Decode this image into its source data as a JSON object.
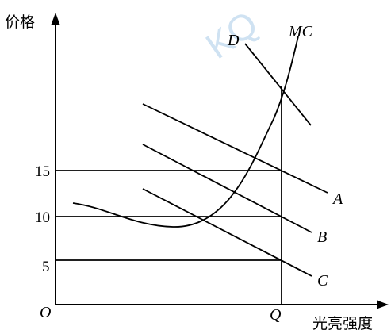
{
  "axes": {
    "y_title": "价格",
    "x_title": "光亮强度",
    "origin_label": "O"
  },
  "y_ticks": [
    "15",
    "10",
    "5"
  ],
  "x_ticks": [
    "Q"
  ],
  "curve_labels": {
    "mc": "MC",
    "d": "D",
    "a": "A",
    "b": "B",
    "c": "C"
  },
  "watermark": "KQ",
  "colors": {
    "ink": "#000000",
    "watermark": "#a9cbe8"
  }
}
